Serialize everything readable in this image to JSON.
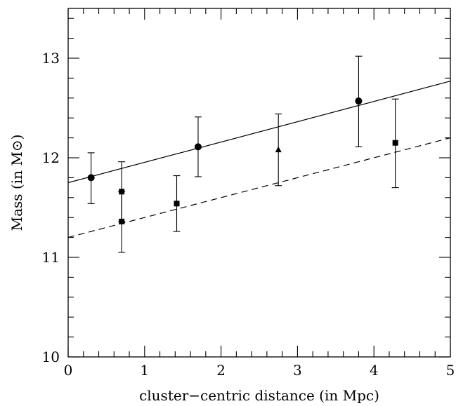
{
  "chart_data": {
    "type": "scatter",
    "xlabel": "cluster−centric distance (in Mpc)",
    "ylabel": "Mass (in M⊙)",
    "xlim": [
      0,
      5
    ],
    "ylim": [
      10,
      13.5
    ],
    "x_ticks": [
      "0",
      "1",
      "2",
      "3",
      "4",
      "5"
    ],
    "y_ticks": [
      "10",
      "11",
      "12",
      "13"
    ],
    "colors": {
      "ink": "#000000",
      "background": "#ffffff"
    },
    "series": [
      {
        "marker": "circle",
        "points": [
          {
            "x": 0.3,
            "y": 11.8,
            "yerr_low": 11.54,
            "yerr_high": 12.05
          },
          {
            "x": 1.7,
            "y": 12.11,
            "yerr_low": 11.81,
            "yerr_high": 12.41
          },
          {
            "x": 3.8,
            "y": 12.57,
            "yerr_low": 12.11,
            "yerr_high": 13.02
          }
        ]
      },
      {
        "marker": "square",
        "points": [
          {
            "x": 0.7,
            "y": 11.66,
            "yerr_low": 11.36,
            "yerr_high": 11.96
          },
          {
            "x": 0.7,
            "y": 11.36,
            "yerr_low": 11.05,
            "yerr_high": 11.66
          },
          {
            "x": 1.42,
            "y": 11.54,
            "yerr_low": 11.26,
            "yerr_high": 11.82
          },
          {
            "x": 4.28,
            "y": 12.15,
            "yerr_low": 11.7,
            "yerr_high": 12.59
          }
        ]
      },
      {
        "marker": "triangle",
        "points": [
          {
            "x": 2.75,
            "y": 12.08,
            "yerr_low": 11.72,
            "yerr_high": 12.44
          }
        ]
      }
    ],
    "fit_lines": [
      {
        "style": "solid",
        "x": [
          0,
          5
        ],
        "y": [
          11.75,
          12.77
        ]
      },
      {
        "style": "dashed",
        "x": [
          0,
          5
        ],
        "y": [
          11.2,
          12.2
        ]
      }
    ]
  }
}
